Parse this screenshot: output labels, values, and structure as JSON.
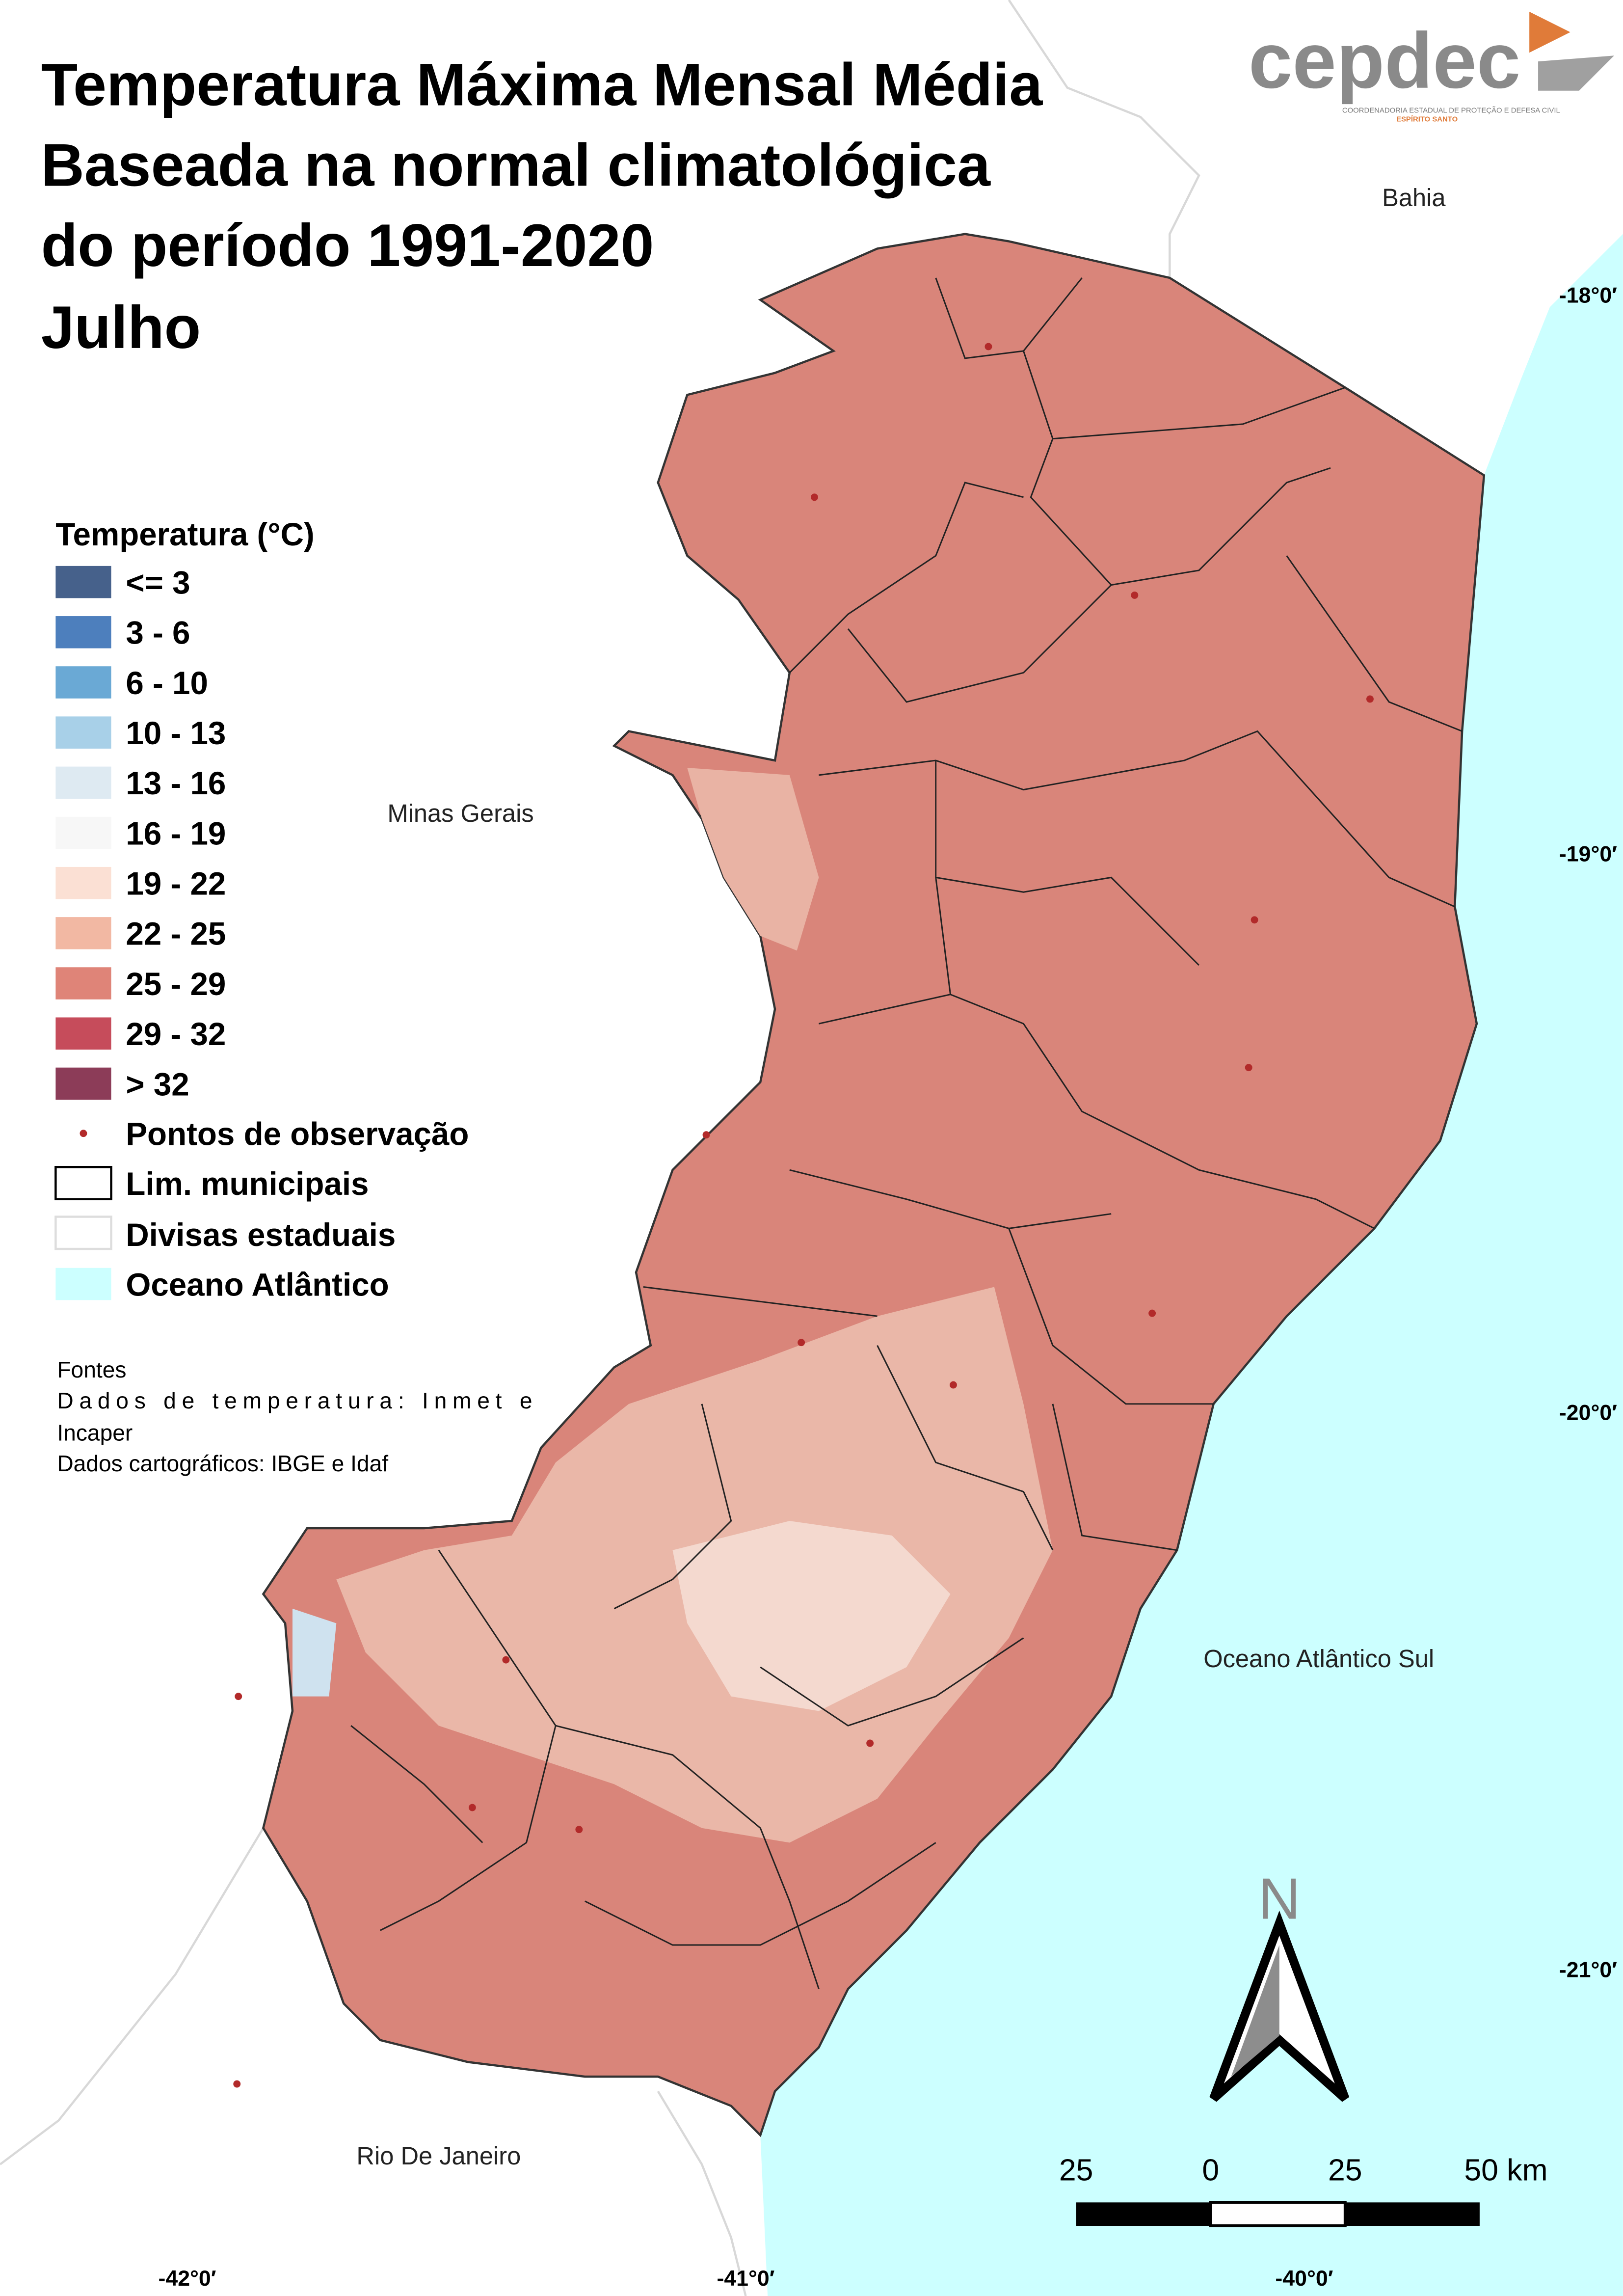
{
  "title": {
    "lines": [
      "Temperatura Máxima Mensal Média",
      "Baseada na normal climatológica",
      "do período 1991-2020",
      "Julho"
    ]
  },
  "logo": {
    "name": "cepdec",
    "subtitle": "COORDENADORIA ESTADUAL DE PROTEÇÃO E DEFESA CIVIL",
    "region": "ESPÍRITO SANTO"
  },
  "legend": {
    "title": "Temperatura (°C)",
    "items": [
      {
        "label": "<= 3",
        "color": "#46618b"
      },
      {
        "label": "3 - 6",
        "color": "#4d7fbd"
      },
      {
        "label": "6 - 10",
        "color": "#6aa9d5"
      },
      {
        "label": "10 - 13",
        "color": "#a8d0e8"
      },
      {
        "label": "13 - 16",
        "color": "#deeaf2"
      },
      {
        "label": "16 - 19",
        "color": "#f7f7f7"
      },
      {
        "label": "19 - 22",
        "color": "#fbe0d4"
      },
      {
        "label": "22 - 25",
        "color": "#f2b8a3"
      },
      {
        "label": "25 - 29",
        "color": "#df8478"
      },
      {
        "label": "29 - 32",
        "color": "#c64c5b"
      },
      {
        "label": "> 32",
        "color": "#8c3c58"
      }
    ],
    "symbols": [
      "Pontos de observação",
      "Lim. municipais",
      "Divisas estaduais",
      "Oceano Atlântico"
    ]
  },
  "sources": [
    "Fontes",
    "Dados de temperatura: Inmet e",
    "Incaper",
    "Dados cartográficos: IBGE e Idaf"
  ],
  "places": [
    "Bahia",
    "Minas Gerais",
    "Oceano Atlântico Sul",
    "Rio De Janeiro"
  ],
  "latitude_labels": [
    "-18°0′",
    "-19°0′",
    "-20°0′",
    "-21°0′"
  ],
  "longitude_labels": [
    "-42°0′",
    "-41°0′",
    "-40°0′"
  ],
  "scale_bar": [
    "25",
    "0",
    "25",
    "50 km"
  ],
  "north": "N"
}
